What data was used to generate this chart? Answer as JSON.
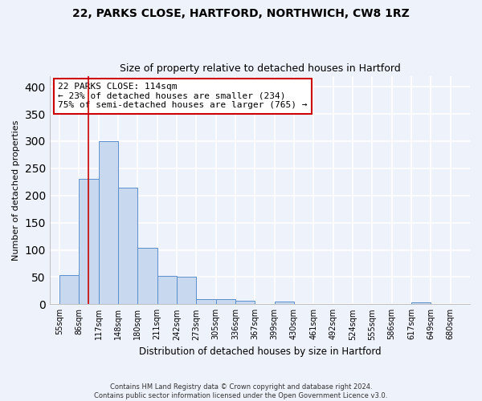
{
  "title_line1": "22, PARKS CLOSE, HARTFORD, NORTHWICH, CW8 1RZ",
  "title_line2": "Size of property relative to detached houses in Hartford",
  "xlabel": "Distribution of detached houses by size in Hartford",
  "ylabel": "Number of detached properties",
  "bin_labels": [
    "55sqm",
    "86sqm",
    "117sqm",
    "148sqm",
    "180sqm",
    "211sqm",
    "242sqm",
    "273sqm",
    "305sqm",
    "336sqm",
    "367sqm",
    "399sqm",
    "430sqm",
    "461sqm",
    "492sqm",
    "524sqm",
    "555sqm",
    "586sqm",
    "617sqm",
    "649sqm",
    "680sqm"
  ],
  "bar_heights": [
    53,
    230,
    300,
    215,
    103,
    52,
    50,
    10,
    10,
    7,
    0,
    5,
    0,
    0,
    0,
    0,
    0,
    0,
    4,
    0,
    0
  ],
  "bar_color": "#c8d8ee",
  "bar_edge_color": "#5a8fcc",
  "vline_x": 1.5,
  "vline_color": "#cc0000",
  "annotation_text": "22 PARKS CLOSE: 114sqm\n← 23% of detached houses are smaller (234)\n75% of semi-detached houses are larger (765) →",
  "annotation_box_color": "#ffffff",
  "annotation_box_edge": "#cc0000",
  "ylim": [
    0,
    420
  ],
  "yticks": [
    0,
    50,
    100,
    150,
    200,
    250,
    300,
    350,
    400
  ],
  "footer_text": "Contains HM Land Registry data © Crown copyright and database right 2024.\nContains public sector information licensed under the Open Government Licence v3.0.",
  "background_color": "#eef2fb",
  "grid_color": "#ffffff"
}
